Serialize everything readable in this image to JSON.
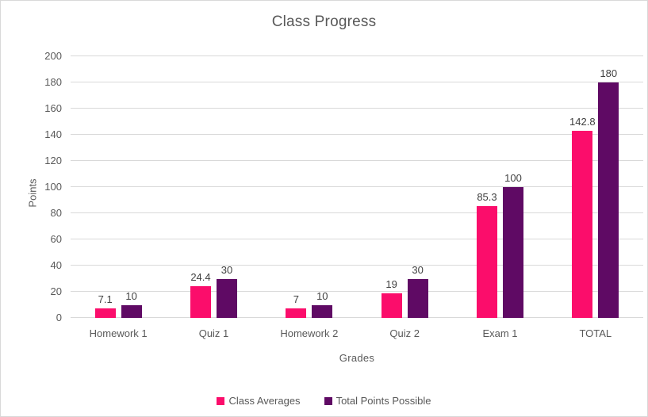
{
  "chart_data": {
    "type": "bar",
    "title": "Class Progress",
    "xlabel": "Grades",
    "ylabel": "Points",
    "categories": [
      "Homework 1",
      "Quiz 1",
      "Homework 2",
      "Quiz 2",
      "Exam 1",
      "TOTAL"
    ],
    "series": [
      {
        "name": "Class Averages",
        "color": "#FB0D6B",
        "values": [
          7.1,
          24.4,
          7,
          19,
          85.3,
          142.8
        ]
      },
      {
        "name": "Total Points Possible",
        "color": "#5F0A64",
        "values": [
          10,
          30,
          10,
          30,
          100,
          180
        ]
      }
    ],
    "data_labels": {
      "Class Averages": [
        "7.1",
        "24.4",
        "7",
        "19",
        "85.3",
        "142.8"
      ],
      "Total Points Possible": [
        "10",
        "30",
        "10",
        "30",
        "100",
        "180"
      ]
    },
    "ylim": [
      0,
      200
    ],
    "ytick_step": 20,
    "ytick_labels": [
      "0",
      "20",
      "40",
      "60",
      "80",
      "100",
      "120",
      "140",
      "160",
      "180",
      "200"
    ],
    "grid": true,
    "legend_position": "bottom"
  },
  "colors": {
    "gridline": "#D9D9D9",
    "frame_border": "#D9D9D9",
    "axis_text": "#595959",
    "title_text": "#595959",
    "data_label_text": "#404040"
  }
}
